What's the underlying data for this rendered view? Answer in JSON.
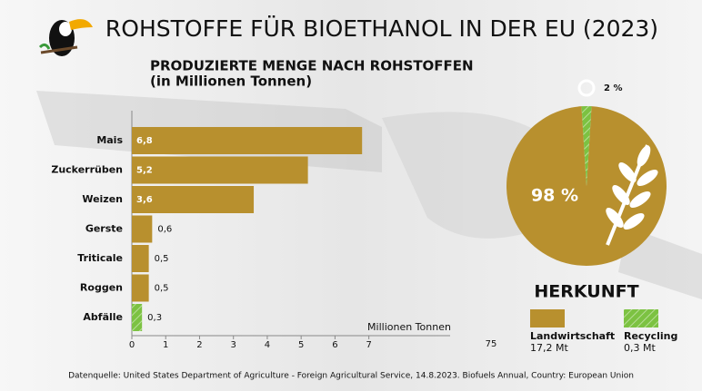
{
  "title": "ROHSTOFFE FÜR BIOETHANOL IN DER EU (2023)",
  "source": "Datenquelle: United States Department of Agriculture - Foreign Agricultural Service, 14.8.2023. Biofuels Annual, Country: European Union",
  "stray_label": "75",
  "chart_data": [
    {
      "type": "bar",
      "orientation": "horizontal",
      "title": "PRODUZIERTE MENGE NACH ROHSTOFFEN",
      "subtitle": "(in Millionen Tonnen)",
      "x_label": "Millionen Tonnen",
      "categories": [
        "Mais",
        "Zuckerrüben",
        "Weizen",
        "Gerste",
        "Triticale",
        "Roggen",
        "Abfälle"
      ],
      "values": [
        6.8,
        5.2,
        3.6,
        0.6,
        0.5,
        0.5,
        0.3
      ],
      "value_labels": [
        "6,8",
        "5,2",
        "3,6",
        "0,6",
        "0,5",
        "0,5",
        "0,3"
      ],
      "colors": [
        "#b8902e",
        "#b8902e",
        "#b8902e",
        "#b8902e",
        "#b8902e",
        "#b8902e",
        "#7cc242"
      ],
      "xlim": [
        0,
        9.4
      ],
      "xticks": [
        0,
        1,
        2,
        3,
        4,
        5,
        6,
        7
      ]
    },
    {
      "type": "pie",
      "title": "HERKUNFT",
      "categories": [
        "Landwirtschaft",
        "Recycling"
      ],
      "values": [
        98,
        2
      ],
      "value_labels": [
        "98 %",
        "2 %"
      ],
      "legend_sublabels": [
        "17,2 Mt",
        "0,3 Mt"
      ],
      "colors": [
        "#b8902e",
        "#7cc242"
      ]
    }
  ]
}
